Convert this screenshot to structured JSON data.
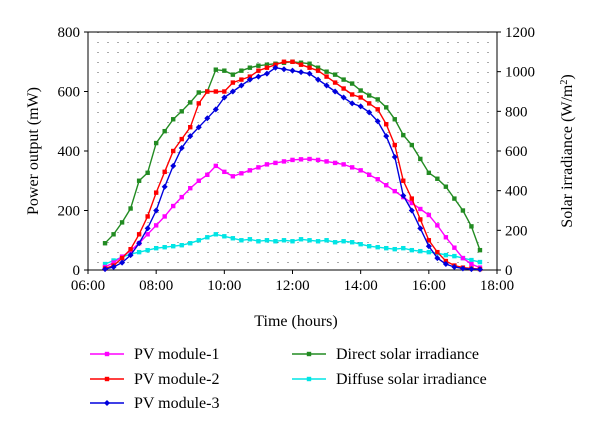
{
  "chart_data": {
    "type": "line",
    "title": "",
    "xlabel": "Time (hours)",
    "ylabel_left": "Power output (mW)",
    "ylabel_right_main": "Solar irradiance (W/m",
    "ylabel_right_sup": "2",
    "ylabel_right_end": ")",
    "xlim_hours": [
      6.0,
      18.0
    ],
    "x_ticks": [
      {
        "value": 6,
        "label": "06:00"
      },
      {
        "value": 8,
        "label": "08:00"
      },
      {
        "value": 10,
        "label": "10:00"
      },
      {
        "value": 12,
        "label": "12:00"
      },
      {
        "value": 14,
        "label": "14:00"
      },
      {
        "value": 16,
        "label": "16:00"
      },
      {
        "value": 18,
        "label": "18:00"
      }
    ],
    "ylim_left": [
      0,
      800
    ],
    "y_ticks_left": [
      "0",
      "200",
      "400",
      "600",
      "800"
    ],
    "ylim_right": [
      0,
      1200
    ],
    "y_ticks_right": [
      "0",
      "200",
      "400",
      "600",
      "800",
      "1000",
      "1200"
    ],
    "grid": "dotted",
    "legend_position": "bottom",
    "series": [
      {
        "name": "PV module-1",
        "axis": "left",
        "color": "#ff00ff",
        "marker": "square",
        "x": [
          6.5,
          6.75,
          7.0,
          7.25,
          7.5,
          7.75,
          8.0,
          8.25,
          8.5,
          8.75,
          9.0,
          9.25,
          9.5,
          9.75,
          10.0,
          10.25,
          10.5,
          10.75,
          11.0,
          11.25,
          11.5,
          11.75,
          12.0,
          12.25,
          12.5,
          12.75,
          13.0,
          13.25,
          13.5,
          13.75,
          14.0,
          14.25,
          14.5,
          14.75,
          15.0,
          15.25,
          15.5,
          15.75,
          16.0,
          16.25,
          16.5,
          16.75,
          17.0,
          17.25,
          17.5
        ],
        "y": [
          10,
          25,
          45,
          65,
          90,
          120,
          150,
          180,
          215,
          245,
          275,
          300,
          320,
          350,
          330,
          315,
          325,
          335,
          345,
          355,
          360,
          365,
          370,
          372,
          373,
          370,
          365,
          360,
          355,
          345,
          335,
          320,
          305,
          285,
          265,
          245,
          225,
          205,
          185,
          150,
          110,
          75,
          40,
          20,
          8
        ]
      },
      {
        "name": "PV module-2",
        "axis": "left",
        "color": "#ff0000",
        "marker": "square",
        "x": [
          6.5,
          6.75,
          7.0,
          7.25,
          7.5,
          7.75,
          8.0,
          8.25,
          8.5,
          8.75,
          9.0,
          9.25,
          9.5,
          9.75,
          10.0,
          10.25,
          10.5,
          10.75,
          11.0,
          11.25,
          11.5,
          11.75,
          12.0,
          12.25,
          12.5,
          12.75,
          13.0,
          13.25,
          13.5,
          13.75,
          14.0,
          14.25,
          14.5,
          14.75,
          15.0,
          15.25,
          15.5,
          15.75,
          16.0,
          16.25,
          16.5,
          16.75,
          17.0,
          17.25,
          17.5
        ],
        "y": [
          5,
          15,
          40,
          70,
          120,
          180,
          260,
          330,
          400,
          440,
          480,
          560,
          600,
          600,
          600,
          630,
          640,
          650,
          670,
          680,
          690,
          700,
          700,
          690,
          680,
          670,
          650,
          630,
          610,
          590,
          580,
          560,
          540,
          490,
          420,
          300,
          240,
          170,
          100,
          60,
          30,
          15,
          8,
          5,
          3
        ]
      },
      {
        "name": "PV module-3",
        "axis": "left",
        "color": "#0000dd",
        "marker": "diamond",
        "x": [
          6.5,
          6.75,
          7.0,
          7.25,
          7.5,
          7.75,
          8.0,
          8.25,
          8.5,
          8.75,
          9.0,
          9.25,
          9.5,
          9.75,
          10.0,
          10.25,
          10.5,
          10.75,
          11.0,
          11.25,
          11.5,
          11.75,
          12.0,
          12.25,
          12.5,
          12.75,
          13.0,
          13.25,
          13.5,
          13.75,
          14.0,
          14.25,
          14.5,
          14.75,
          15.0,
          15.25,
          15.5,
          15.75,
          16.0,
          16.25,
          16.5,
          16.75,
          17.0,
          17.25,
          17.5
        ],
        "y": [
          3,
          10,
          25,
          50,
          90,
          140,
          200,
          280,
          350,
          410,
          450,
          480,
          510,
          540,
          580,
          600,
          620,
          640,
          650,
          660,
          680,
          675,
          670,
          665,
          660,
          640,
          620,
          600,
          580,
          560,
          550,
          530,
          500,
          450,
          380,
          250,
          200,
          140,
          80,
          40,
          20,
          10,
          5,
          3,
          2
        ]
      },
      {
        "name": "Direct solar irradiance",
        "axis": "right",
        "color": "#228b22",
        "marker": "square",
        "x": [
          6.5,
          6.75,
          7.0,
          7.25,
          7.5,
          7.75,
          8.0,
          8.25,
          8.5,
          8.75,
          9.0,
          9.25,
          9.5,
          9.75,
          10.0,
          10.25,
          10.5,
          10.75,
          11.0,
          11.25,
          11.5,
          11.75,
          12.0,
          12.25,
          12.5,
          12.75,
          13.0,
          13.25,
          13.5,
          13.75,
          14.0,
          14.25,
          14.5,
          14.75,
          15.0,
          15.25,
          15.5,
          15.75,
          16.0,
          16.25,
          16.5,
          16.75,
          17.0,
          17.25,
          17.5
        ],
        "y": [
          135,
          180,
          240,
          310,
          450,
          490,
          640,
          700,
          760,
          800,
          845,
          895,
          900,
          1010,
          1005,
          985,
          1005,
          1020,
          1030,
          1035,
          1040,
          1045,
          1050,
          1045,
          1040,
          1020,
          1000,
          985,
          960,
          940,
          905,
          880,
          860,
          820,
          760,
          680,
          630,
          560,
          490,
          460,
          420,
          360,
          300,
          220,
          100
        ]
      },
      {
        "name": "Diffuse solar irradiance",
        "axis": "right",
        "color": "#00e5e5",
        "marker": "square",
        "x": [
          6.5,
          6.75,
          7.0,
          7.25,
          7.5,
          7.75,
          8.0,
          8.25,
          8.5,
          8.75,
          9.0,
          9.25,
          9.5,
          9.75,
          10.0,
          10.25,
          10.5,
          10.75,
          11.0,
          11.25,
          11.5,
          11.75,
          12.0,
          12.25,
          12.5,
          12.75,
          13.0,
          13.25,
          13.5,
          13.75,
          14.0,
          14.25,
          14.5,
          14.75,
          15.0,
          15.25,
          15.5,
          15.75,
          16.0,
          16.25,
          16.5,
          16.75,
          17.0,
          17.25,
          17.5
        ],
        "y": [
          30,
          48,
          65,
          80,
          90,
          100,
          110,
          115,
          120,
          125,
          135,
          150,
          165,
          180,
          170,
          160,
          150,
          155,
          145,
          150,
          145,
          150,
          145,
          155,
          150,
          145,
          150,
          140,
          145,
          140,
          130,
          120,
          115,
          110,
          105,
          110,
          100,
          95,
          90,
          85,
          75,
          70,
          60,
          50,
          40
        ]
      }
    ]
  }
}
